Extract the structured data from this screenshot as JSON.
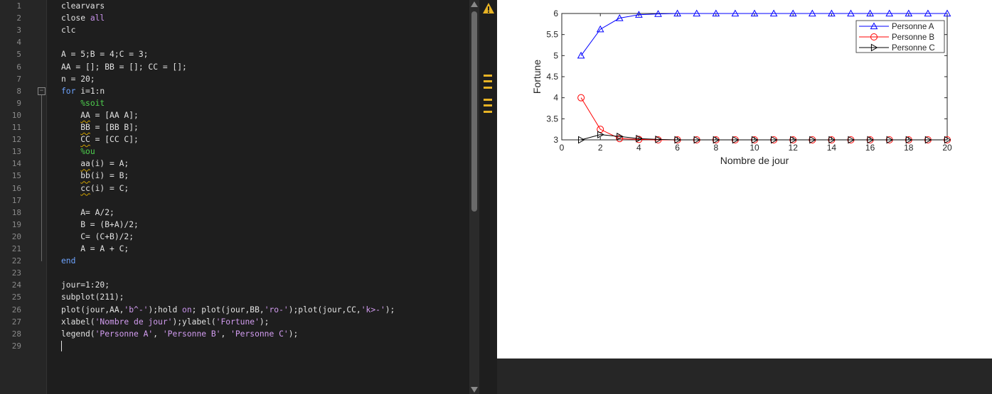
{
  "editor": {
    "lines": [
      {
        "n": "1",
        "segs": [
          {
            "t": "clearvars"
          }
        ]
      },
      {
        "n": "2",
        "segs": [
          {
            "t": "close "
          },
          {
            "t": "all",
            "c": "kw"
          }
        ]
      },
      {
        "n": "3",
        "segs": [
          {
            "t": "clc"
          }
        ]
      },
      {
        "n": "4",
        "segs": []
      },
      {
        "n": "5",
        "segs": [
          {
            "t": "A = 5;B = 4;C = 3;"
          }
        ]
      },
      {
        "n": "6",
        "segs": [
          {
            "t": "AA = []; BB = []; CC = [];"
          }
        ]
      },
      {
        "n": "7",
        "segs": [
          {
            "t": "n = 20;"
          }
        ]
      },
      {
        "n": "8",
        "segs": [
          {
            "t": "for ",
            "c": "kw2"
          },
          {
            "t": "i=1:n"
          }
        ]
      },
      {
        "n": "9",
        "segs": [
          {
            "t": "    "
          },
          {
            "t": "%soit",
            "c": "cmt"
          }
        ]
      },
      {
        "n": "10",
        "segs": [
          {
            "t": "    "
          },
          {
            "t": "AA",
            "c": "squig"
          },
          {
            "t": " = [AA A];"
          }
        ]
      },
      {
        "n": "11",
        "segs": [
          {
            "t": "    "
          },
          {
            "t": "BB",
            "c": "squig"
          },
          {
            "t": " = [BB B];"
          }
        ]
      },
      {
        "n": "12",
        "segs": [
          {
            "t": "    "
          },
          {
            "t": "CC",
            "c": "squig"
          },
          {
            "t": " = [CC C];"
          }
        ]
      },
      {
        "n": "13",
        "segs": [
          {
            "t": "    "
          },
          {
            "t": "%ou",
            "c": "cmt"
          }
        ]
      },
      {
        "n": "14",
        "segs": [
          {
            "t": "    "
          },
          {
            "t": "aa",
            "c": "squig"
          },
          {
            "t": "(i) = A;"
          }
        ]
      },
      {
        "n": "15",
        "segs": [
          {
            "t": "    "
          },
          {
            "t": "bb",
            "c": "squig"
          },
          {
            "t": "(i) = B;"
          }
        ]
      },
      {
        "n": "16",
        "segs": [
          {
            "t": "    "
          },
          {
            "t": "cc",
            "c": "squig"
          },
          {
            "t": "(i) = C;"
          }
        ]
      },
      {
        "n": "17",
        "segs": []
      },
      {
        "n": "18",
        "segs": [
          {
            "t": "    A= A/2;"
          }
        ]
      },
      {
        "n": "19",
        "segs": [
          {
            "t": "    B = (B+A)/2;"
          }
        ]
      },
      {
        "n": "20",
        "segs": [
          {
            "t": "    C= (C+B)/2;"
          }
        ]
      },
      {
        "n": "21",
        "segs": [
          {
            "t": "    A = A + C;"
          }
        ]
      },
      {
        "n": "22",
        "segs": [
          {
            "t": "end",
            "c": "kw2"
          }
        ]
      },
      {
        "n": "23",
        "segs": []
      },
      {
        "n": "24",
        "segs": [
          {
            "t": "jour=1:20;"
          }
        ]
      },
      {
        "n": "25",
        "segs": [
          {
            "t": "subplot(211);"
          }
        ]
      },
      {
        "n": "26",
        "segs": [
          {
            "t": "plot(jour,AA,"
          },
          {
            "t": "'b^-'",
            "c": "str"
          },
          {
            "t": ");hold "
          },
          {
            "t": "on",
            "c": "kw"
          },
          {
            "t": "; plot(jour,BB,"
          },
          {
            "t": "'ro-'",
            "c": "str"
          },
          {
            "t": ");plot(jour,CC,"
          },
          {
            "t": "'k>-'",
            "c": "str"
          },
          {
            "t": ");"
          }
        ]
      },
      {
        "n": "27",
        "segs": [
          {
            "t": "xlabel("
          },
          {
            "t": "'Nombre de jour'",
            "c": "str"
          },
          {
            "t": ");ylabel("
          },
          {
            "t": "'Fortune'",
            "c": "str"
          },
          {
            "t": ");"
          }
        ]
      },
      {
        "n": "28",
        "segs": [
          {
            "t": "legend("
          },
          {
            "t": "'Personne A'",
            "c": "str"
          },
          {
            "t": ", "
          },
          {
            "t": "'Personne B'",
            "c": "str"
          },
          {
            "t": ", "
          },
          {
            "t": "'Personne C'",
            "c": "str"
          },
          {
            "t": ");"
          }
        ]
      },
      {
        "n": "29",
        "segs": []
      }
    ],
    "fold_line": "8",
    "fold_symbol": "−"
  },
  "warning": {
    "icon": "warning-icon",
    "color": "#e7b325"
  },
  "chart_data": {
    "type": "line",
    "xlabel": "Nombre de jour",
    "ylabel": "Fortune",
    "xlim": [
      0,
      20
    ],
    "ylim": [
      3,
      6
    ],
    "xticks": [
      0,
      2,
      4,
      6,
      8,
      10,
      12,
      14,
      16,
      18,
      20
    ],
    "yticks": [
      3,
      3.5,
      4,
      4.5,
      5,
      5.5,
      6
    ],
    "yticklabels": [
      "3",
      "3.5",
      "4",
      "4.5",
      "5",
      "5.5",
      "6"
    ],
    "x": [
      1,
      2,
      3,
      4,
      5,
      6,
      7,
      8,
      9,
      10,
      11,
      12,
      13,
      14,
      15,
      16,
      17,
      18,
      19,
      20
    ],
    "legend_position": "top-right",
    "grid": false,
    "series": [
      {
        "name": "Personne A",
        "color": "#0000ff",
        "marker": "triangle-up",
        "values": [
          5,
          5.625,
          5.89,
          5.97,
          5.99,
          6,
          6,
          6,
          6,
          6,
          6,
          6,
          6,
          6,
          6,
          6,
          6,
          6,
          6,
          6
        ]
      },
      {
        "name": "Personne B",
        "color": "#ff0000",
        "marker": "circle",
        "values": [
          4,
          3.25,
          3.03,
          3.01,
          3,
          3,
          3,
          3,
          3,
          3,
          3,
          3,
          3,
          3,
          3,
          3,
          3,
          3,
          3,
          3
        ]
      },
      {
        "name": "Personne C",
        "color": "#000000",
        "marker": "triangle-right",
        "values": [
          3,
          3.125,
          3.08,
          3.03,
          3.01,
          3,
          3,
          3,
          3,
          3,
          3,
          3,
          3,
          3,
          3,
          3,
          3,
          3,
          3,
          3
        ]
      }
    ]
  }
}
